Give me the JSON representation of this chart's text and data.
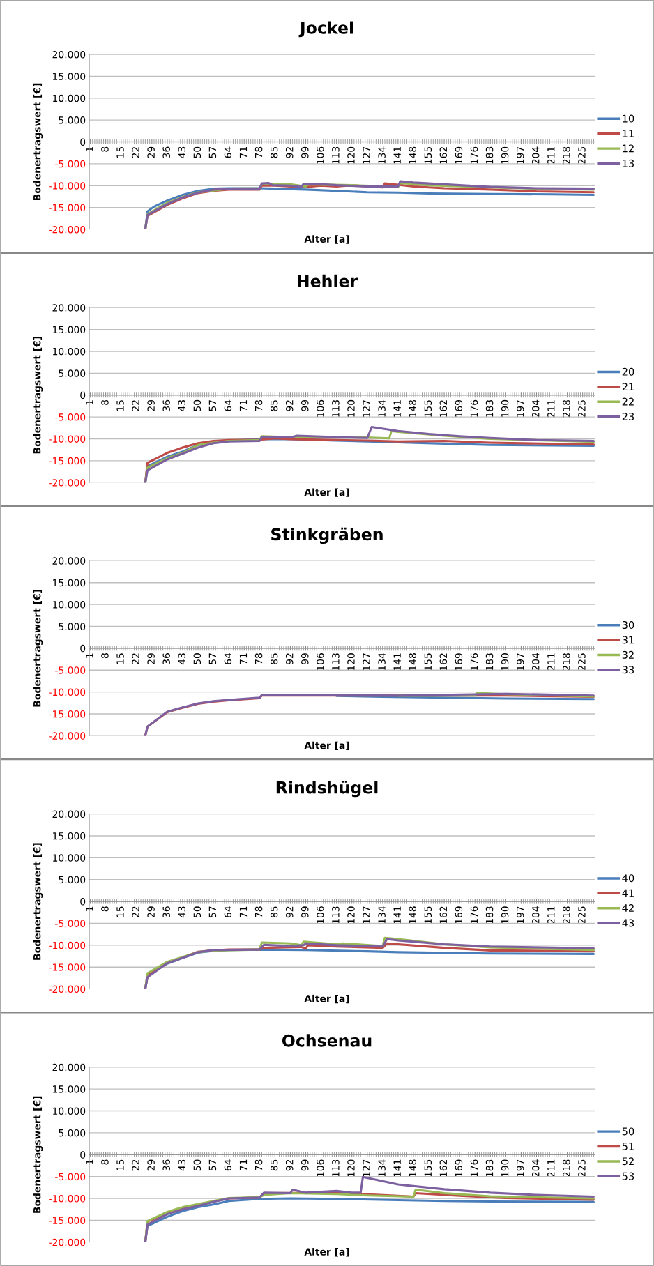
{
  "chart_data": [
    {
      "type": "line",
      "title": "Jockel",
      "xlabel": "Alter [a]",
      "ylabel": "Bodenertragswert [€]",
      "xlim": [
        0.5,
        230.5
      ],
      "xticks": [
        1,
        8,
        15,
        22,
        29,
        36,
        43,
        50,
        57,
        64,
        71,
        78,
        85,
        92,
        99,
        106,
        113,
        120,
        127,
        134,
        141,
        148,
        155,
        162,
        169,
        176,
        183,
        190,
        197,
        204,
        211,
        218,
        225
      ],
      "ylim": [
        -20000,
        20000
      ],
      "yticks": [
        {
          "value": 20000,
          "label": "20.000"
        },
        {
          "value": 15000,
          "label": "15.000"
        },
        {
          "value": 10000,
          "label": "10.000"
        },
        {
          "value": 5000,
          "label": "5.000"
        },
        0,
        {
          "value": -5000,
          "label": "-5.000"
        },
        {
          "value": -10000,
          "label": "-10.000"
        },
        {
          "value": -15000,
          "label": "-15.000"
        },
        {
          "value": -20000,
          "label": "-20.000"
        }
      ],
      "grid": "y",
      "legend": "right",
      "series": [
        {
          "name": "10",
          "color": "#4a7ebb",
          "x": [
            26,
            27,
            30,
            36,
            43,
            50,
            57,
            64,
            78,
            85,
            99,
            113,
            127,
            141,
            155,
            183,
            211,
            230
          ],
          "values": [
            -20000,
            -15900,
            -14800,
            -13400,
            -12100,
            -11200,
            -10700,
            -10600,
            -10600,
            -10700,
            -10900,
            -11200,
            -11500,
            -11600,
            -11800,
            -11900,
            -12000,
            -12100
          ]
        },
        {
          "name": "11",
          "color": "#be4b48",
          "x": [
            26,
            27,
            36,
            43,
            50,
            57,
            64,
            78,
            79,
            85,
            92,
            99,
            106,
            113,
            120,
            127,
            134,
            135,
            141,
            148,
            162,
            183,
            204,
            230
          ],
          "values": [
            -20000,
            -16900,
            -14400,
            -12900,
            -11700,
            -11200,
            -10900,
            -10900,
            -10000,
            -10000,
            -10200,
            -10300,
            -10000,
            -10200,
            -9900,
            -10200,
            -10400,
            -9500,
            -9800,
            -10200,
            -10600,
            -10900,
            -11300,
            -11500
          ]
        },
        {
          "name": "12",
          "color": "#98b954",
          "x": [
            26,
            27,
            36,
            43,
            50,
            64,
            78,
            79,
            92,
            99,
            100,
            120,
            141,
            142,
            155,
            183,
            211,
            230
          ],
          "values": [
            -20000,
            -16500,
            -13900,
            -12600,
            -11500,
            -10700,
            -10600,
            -9700,
            -9700,
            -10200,
            -9700,
            -9900,
            -10300,
            -9400,
            -9900,
            -10400,
            -10800,
            -10900
          ]
        },
        {
          "name": "13",
          "color": "#7d60a0",
          "x": [
            26,
            27,
            36,
            43,
            50,
            57,
            64,
            78,
            79,
            82,
            84,
            92,
            97,
            98,
            104,
            113,
            127,
            134,
            141,
            142,
            148,
            155,
            169,
            183,
            204,
            230
          ],
          "values": [
            -20000,
            -16700,
            -14200,
            -12700,
            -11600,
            -10900,
            -10700,
            -10700,
            -9500,
            -9400,
            -9900,
            -10000,
            -10300,
            -9600,
            -9600,
            -9900,
            -10200,
            -10200,
            -10200,
            -9000,
            -9300,
            -9500,
            -9900,
            -10300,
            -10600,
            -10700
          ]
        }
      ]
    },
    {
      "type": "line",
      "title": "Hehler",
      "xlabel": "Alter [a]",
      "ylabel": "Bodenertragswert [€]",
      "xlim": [
        0.5,
        230.5
      ],
      "xticks": [
        1,
        8,
        15,
        22,
        29,
        36,
        43,
        50,
        57,
        64,
        71,
        78,
        85,
        92,
        99,
        106,
        113,
        120,
        127,
        134,
        141,
        148,
        155,
        162,
        169,
        176,
        183,
        190,
        197,
        204,
        211,
        218,
        225
      ],
      "ylim": [
        -20000,
        20000
      ],
      "yticks": [
        {
          "value": 20000,
          "label": "20.000"
        },
        {
          "value": 15000,
          "label": "15.000"
        },
        {
          "value": 10000,
          "label": "10.000"
        },
        {
          "value": 5000,
          "label": "5.000"
        },
        0,
        {
          "value": -5000,
          "label": "-5.000"
        },
        {
          "value": -10000,
          "label": "-10.000"
        },
        {
          "value": -15000,
          "label": "-15.000"
        },
        {
          "value": -20000,
          "label": "-20.000"
        }
      ],
      "grid": "y",
      "legend": "right",
      "series": [
        {
          "name": "20",
          "color": "#4a7ebb",
          "x": [
            26,
            27,
            36,
            43,
            50,
            57,
            64,
            78,
            92,
            113,
            127,
            141,
            162,
            183,
            230
          ],
          "values": [
            -20000,
            -16300,
            -14100,
            -12900,
            -11400,
            -10800,
            -10400,
            -10100,
            -10100,
            -10400,
            -10600,
            -10800,
            -11100,
            -11400,
            -11600
          ]
        },
        {
          "name": "21",
          "color": "#be4b48",
          "x": [
            26,
            27,
            36,
            43,
            50,
            57,
            64,
            78,
            85,
            92,
            113,
            127,
            141,
            162,
            183,
            230
          ],
          "values": [
            -20000,
            -15500,
            -13200,
            -12000,
            -11000,
            -10500,
            -10300,
            -10200,
            -9900,
            -10100,
            -10300,
            -10400,
            -10600,
            -10500,
            -10900,
            -11300
          ]
        },
        {
          "name": "22",
          "color": "#98b954",
          "x": [
            26,
            27,
            36,
            43,
            50,
            57,
            64,
            78,
            79,
            92,
            106,
            127,
            137,
            138,
            141,
            162,
            183,
            230
          ],
          "values": [
            -20000,
            -16600,
            -14400,
            -13200,
            -11400,
            -10900,
            -10500,
            -10300,
            -9400,
            -9600,
            -9600,
            -9700,
            -9900,
            -8200,
            -8400,
            -9300,
            -10000,
            -10700
          ]
        },
        {
          "name": "23",
          "color": "#7d60a0",
          "x": [
            26,
            27,
            36,
            43,
            50,
            57,
            64,
            78,
            79,
            92,
            95,
            113,
            127,
            129,
            141,
            155,
            169,
            183,
            204,
            230
          ],
          "values": [
            -20000,
            -17200,
            -14700,
            -13400,
            -12000,
            -11000,
            -10600,
            -10500,
            -9600,
            -9700,
            -9300,
            -9600,
            -9800,
            -7300,
            -8200,
            -8900,
            -9400,
            -9800,
            -10300,
            -10500
          ]
        }
      ]
    },
    {
      "type": "line",
      "title": "Stinkgräben",
      "xlabel": "Alter [a]",
      "ylabel": "Bodenertragswert [€]",
      "xlim": [
        0.5,
        230.5
      ],
      "xticks": [
        1,
        8,
        15,
        22,
        29,
        36,
        43,
        50,
        57,
        64,
        71,
        78,
        85,
        92,
        99,
        106,
        113,
        120,
        127,
        134,
        141,
        148,
        155,
        162,
        169,
        176,
        183,
        190,
        197,
        204,
        211,
        218,
        225
      ],
      "ylim": [
        -20000,
        20000
      ],
      "yticks": [
        {
          "value": 20000,
          "label": "20.000"
        },
        {
          "value": 15000,
          "label": "15.000"
        },
        {
          "value": 10000,
          "label": "10.000"
        },
        {
          "value": 5000,
          "label": "5.000"
        },
        0,
        {
          "value": -5000,
          "label": "-5.000"
        },
        {
          "value": -10000,
          "label": "-10.000"
        },
        {
          "value": -15000,
          "label": "-15.000"
        },
        {
          "value": -20000,
          "label": "-20.000"
        }
      ],
      "grid": "y",
      "legend": "right",
      "series": [
        {
          "name": "30",
          "color": "#4a7ebb",
          "x": [
            113,
            134,
            162,
            190,
            230
          ],
          "values": [
            -10900,
            -11100,
            -11300,
            -11500,
            -11600
          ]
        },
        {
          "name": "31",
          "color": "#be4b48",
          "x": [
            26,
            27,
            36,
            43,
            50,
            57,
            64,
            78,
            79,
            92,
            113,
            141,
            190,
            230
          ],
          "values": [
            -20000,
            -17900,
            -14600,
            -13600,
            -12700,
            -12200,
            -11900,
            -11400,
            -10800,
            -10800,
            -10800,
            -10800,
            -10800,
            -11100
          ]
        },
        {
          "name": "32",
          "color": "#98b954",
          "x": [
            141,
            176,
            177,
            190,
            230
          ],
          "values": [
            -10800,
            -10800,
            -10200,
            -10500,
            -11000
          ]
        },
        {
          "name": "33",
          "color": "#7d60a0",
          "x": [
            26,
            27,
            36,
            43,
            50,
            57,
            64,
            78,
            79,
            92,
            113,
            141,
            190,
            230
          ],
          "values": [
            -20000,
            -17900,
            -14500,
            -13500,
            -12600,
            -12100,
            -11800,
            -11300,
            -10700,
            -10700,
            -10700,
            -10800,
            -10400,
            -10800
          ]
        }
      ]
    },
    {
      "type": "line",
      "title": "Rindshügel",
      "xlabel": "Alter [a]",
      "ylabel": "Bodenertragswert [€]",
      "xlim": [
        0.5,
        230.5
      ],
      "xticks": [
        1,
        8,
        15,
        22,
        29,
        36,
        43,
        50,
        57,
        64,
        71,
        78,
        85,
        92,
        99,
        106,
        113,
        120,
        127,
        134,
        141,
        148,
        155,
        162,
        169,
        176,
        183,
        190,
        197,
        204,
        211,
        218,
        225
      ],
      "ylim": [
        -20000,
        20000
      ],
      "yticks": [
        {
          "value": 20000,
          "label": "20.000"
        },
        {
          "value": 15000,
          "label": "15.000"
        },
        {
          "value": 10000,
          "label": "10.000"
        },
        {
          "value": 5000,
          "label": "5.000"
        },
        0,
        {
          "value": -5000,
          "label": "-5.000"
        },
        {
          "value": -10000,
          "label": "-10.000"
        },
        {
          "value": -15000,
          "label": "-15.000"
        },
        {
          "value": -20000,
          "label": "-20.000"
        }
      ],
      "grid": "y",
      "legend": "right",
      "series": [
        {
          "name": "40",
          "color": "#4a7ebb",
          "x": [
            26,
            27,
            36,
            43,
            50,
            57,
            64,
            78,
            99,
            127,
            141,
            183,
            230
          ],
          "values": [
            -20000,
            -16800,
            -14200,
            -12900,
            -11700,
            -11300,
            -11100,
            -11000,
            -11100,
            -11400,
            -11600,
            -11900,
            -12000
          ]
        },
        {
          "name": "41",
          "color": "#be4b48",
          "x": [
            26,
            27,
            36,
            43,
            50,
            57,
            64,
            78,
            80,
            97,
            99,
            100,
            113,
            134,
            136,
            141,
            162,
            183,
            230
          ],
          "values": [
            -20000,
            -17000,
            -14100,
            -12800,
            -11500,
            -11200,
            -11000,
            -11000,
            -10600,
            -10400,
            -10800,
            -10000,
            -10300,
            -10600,
            -9600,
            -9800,
            -10600,
            -11200,
            -11400
          ]
        },
        {
          "name": "42",
          "color": "#98b954",
          "x": [
            26,
            27,
            36,
            43,
            50,
            57,
            78,
            79,
            92,
            97,
            98,
            113,
            116,
            134,
            135,
            141,
            162,
            183,
            230
          ],
          "values": [
            -20000,
            -16400,
            -13800,
            -12700,
            -11600,
            -11200,
            -11000,
            -9400,
            -9600,
            -10000,
            -9200,
            -9800,
            -9600,
            -10200,
            -8300,
            -8600,
            -9800,
            -10500,
            -11100
          ]
        },
        {
          "name": "43",
          "color": "#7d60a0",
          "x": [
            26,
            27,
            36,
            43,
            50,
            57,
            78,
            80,
            92,
            98,
            99,
            113,
            134,
            136,
            141,
            162,
            183,
            230
          ],
          "values": [
            -20000,
            -17300,
            -14100,
            -12900,
            -11600,
            -11100,
            -11000,
            -9900,
            -10200,
            -10000,
            -9600,
            -10000,
            -10300,
            -8600,
            -8900,
            -9800,
            -10300,
            -10700
          ]
        }
      ]
    },
    {
      "type": "line",
      "title": "Ochsenau",
      "xlabel": "Alter [a]",
      "ylabel": "Bodenertragswert [€]",
      "xlim": [
        0.5,
        230.5
      ],
      "xticks": [
        1,
        8,
        15,
        22,
        29,
        36,
        43,
        50,
        57,
        64,
        71,
        78,
        85,
        92,
        99,
        106,
        113,
        120,
        127,
        134,
        141,
        148,
        155,
        162,
        169,
        176,
        183,
        190,
        197,
        204,
        211,
        218,
        225
      ],
      "ylim": [
        -20000,
        20000
      ],
      "yticks": [
        {
          "value": 20000,
          "label": "20.000"
        },
        {
          "value": 15000,
          "label": "15.000"
        },
        {
          "value": 10000,
          "label": "10.000"
        },
        {
          "value": 5000,
          "label": "5.000"
        },
        0,
        {
          "value": -5000,
          "label": "-5.000"
        },
        {
          "value": -10000,
          "label": "-10.000"
        },
        {
          "value": -15000,
          "label": "-15.000"
        },
        {
          "value": -20000,
          "label": "-20.000"
        }
      ],
      "grid": "y",
      "legend": "right",
      "series": [
        {
          "name": "50",
          "color": "#4a7ebb",
          "x": [
            26,
            27,
            36,
            43,
            50,
            57,
            64,
            78,
            92,
            113,
            141,
            162,
            183,
            230
          ],
          "values": [
            -20000,
            -16300,
            -14200,
            -12900,
            -12000,
            -11400,
            -10600,
            -10100,
            -10000,
            -10100,
            -10400,
            -10600,
            -10700,
            -10800
          ]
        },
        {
          "name": "51",
          "color": "#be4b48",
          "x": [
            26,
            27,
            36,
            43,
            50,
            57,
            64,
            78,
            80,
            113,
            141,
            148,
            149,
            169,
            190,
            230
          ],
          "values": [
            -20000,
            -15300,
            -13300,
            -12200,
            -11400,
            -10700,
            -10000,
            -9800,
            -8800,
            -8700,
            -9400,
            -9600,
            -8800,
            -9400,
            -9900,
            -10300
          ]
        },
        {
          "name": "52",
          "color": "#98b954",
          "x": [
            26,
            27,
            36,
            43,
            50,
            57,
            64,
            78,
            80,
            92,
            113,
            127,
            148,
            149,
            162,
            183,
            230
          ],
          "values": [
            -20000,
            -15200,
            -13100,
            -12000,
            -11300,
            -10600,
            -9900,
            -9700,
            -9200,
            -8800,
            -9000,
            -9300,
            -9600,
            -8000,
            -8800,
            -9500,
            -10000
          ]
        },
        {
          "name": "53",
          "color": "#7d60a0",
          "x": [
            26,
            27,
            36,
            43,
            50,
            57,
            64,
            78,
            80,
            92,
            93,
            99,
            113,
            120,
            124,
            125,
            141,
            162,
            183,
            204,
            230
          ],
          "values": [
            -20000,
            -16000,
            -13600,
            -12500,
            -11700,
            -10800,
            -10000,
            -9800,
            -8700,
            -8800,
            -8000,
            -8700,
            -8300,
            -8700,
            -8700,
            -5100,
            -6800,
            -7900,
            -8700,
            -9200,
            -9600
          ]
        }
      ]
    }
  ]
}
